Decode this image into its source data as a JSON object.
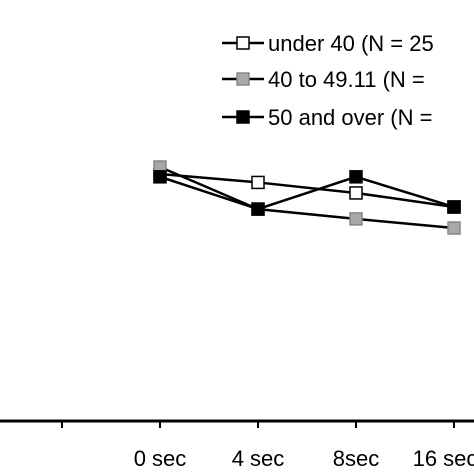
{
  "colors": {
    "background": "#ffffff",
    "axis": "#000000",
    "series_lines": "#000000"
  },
  "chart_data": {
    "type": "line",
    "title": "",
    "xlabel": "",
    "ylabel": "",
    "categories": [
      "0 sec",
      "4 sec",
      "8sec",
      "16 sec"
    ],
    "series": [
      {
        "name": "under 40 (N = 25",
        "marker": "open-square",
        "fill": "#ffffff",
        "values": [
          3.52,
          3.4,
          3.25,
          3.05
        ]
      },
      {
        "name": "40 to 49.11 (N =",
        "marker": "gray-square",
        "fill": "#a8a8a8",
        "values": [
          3.62,
          3.02,
          2.88,
          2.75
        ]
      },
      {
        "name": "50 and over (N =",
        "marker": "filled-square",
        "fill": "#000000",
        "values": [
          3.48,
          3.02,
          3.48,
          3.05
        ]
      }
    ],
    "ylim": [
      0,
      6
    ],
    "grid": false,
    "legend": "top-right"
  }
}
